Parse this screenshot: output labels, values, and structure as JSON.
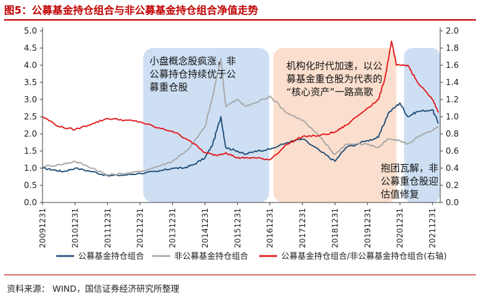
{
  "title": "图5：公募基金持仓组合与非公募基金持仓组合净值走势",
  "source": "资料来源： WIND，国信证券经济研究所整理",
  "chart_data": {
    "type": "line",
    "x": [
      "20091231",
      "20101231",
      "20111231",
      "20121231",
      "20131231",
      "20141231",
      "20151231",
      "20161231",
      "20171231",
      "20181231",
      "20191231",
      "20201231",
      "20211231"
    ],
    "ylim_left": [
      0,
      5
    ],
    "yticks_left": [
      "0.0",
      "0.5",
      "1.0",
      "1.5",
      "2.0",
      "2.5",
      "3.0",
      "3.5",
      "4.0",
      "4.5",
      "5.0"
    ],
    "ylim_right": [
      0,
      2
    ],
    "yticks_right": [
      "0.0",
      "0.2",
      "0.4",
      "0.6",
      "0.8",
      "1.0",
      "1.2",
      "1.4",
      "1.6",
      "1.8",
      "2.0"
    ],
    "series": [
      {
        "name": "公募基金持仓组合",
        "axis": "left",
        "color": "#1f4e79",
        "points": [
          [
            2009.96,
            1.0
          ],
          [
            2010.3,
            0.95
          ],
          [
            2010.6,
            0.9
          ],
          [
            2010.96,
            1.0
          ],
          [
            2011.5,
            0.9
          ],
          [
            2011.96,
            0.78
          ],
          [
            2012.5,
            0.8
          ],
          [
            2012.96,
            0.85
          ],
          [
            2013.5,
            0.9
          ],
          [
            2013.96,
            1.0
          ],
          [
            2014.3,
            1.0
          ],
          [
            2014.6,
            1.1
          ],
          [
            2014.96,
            1.3
          ],
          [
            2015.2,
            1.7
          ],
          [
            2015.45,
            2.5
          ],
          [
            2015.6,
            1.6
          ],
          [
            2015.96,
            1.5
          ],
          [
            2016.2,
            1.4
          ],
          [
            2016.5,
            1.5
          ],
          [
            2016.96,
            1.55
          ],
          [
            2017.5,
            1.75
          ],
          [
            2017.96,
            1.85
          ],
          [
            2018.5,
            1.5
          ],
          [
            2018.96,
            1.2
          ],
          [
            2019.3,
            1.6
          ],
          [
            2019.96,
            1.8
          ],
          [
            2020.3,
            1.9
          ],
          [
            2020.6,
            2.6
          ],
          [
            2020.96,
            2.9
          ],
          [
            2021.2,
            2.5
          ],
          [
            2021.5,
            2.65
          ],
          [
            2021.96,
            2.7
          ],
          [
            2022.15,
            2.3
          ]
        ]
      },
      {
        "name": "非公募基金持仓组合",
        "axis": "left",
        "color": "#a6a6a6",
        "points": [
          [
            2009.96,
            1.05
          ],
          [
            2010.5,
            1.1
          ],
          [
            2010.96,
            1.2
          ],
          [
            2011.5,
            1.0
          ],
          [
            2011.96,
            0.8
          ],
          [
            2012.5,
            0.85
          ],
          [
            2012.96,
            0.9
          ],
          [
            2013.5,
            1.05
          ],
          [
            2013.96,
            1.2
          ],
          [
            2014.5,
            1.6
          ],
          [
            2014.96,
            2.2
          ],
          [
            2015.2,
            3.1
          ],
          [
            2015.45,
            4.2
          ],
          [
            2015.6,
            2.8
          ],
          [
            2015.96,
            3.0
          ],
          [
            2016.2,
            2.8
          ],
          [
            2016.5,
            2.9
          ],
          [
            2016.96,
            3.1
          ],
          [
            2017.5,
            2.6
          ],
          [
            2017.96,
            2.4
          ],
          [
            2018.5,
            1.9
          ],
          [
            2018.96,
            1.4
          ],
          [
            2019.3,
            1.7
          ],
          [
            2019.96,
            1.7
          ],
          [
            2020.3,
            1.6
          ],
          [
            2020.6,
            1.85
          ],
          [
            2020.96,
            1.8
          ],
          [
            2021.2,
            1.7
          ],
          [
            2021.5,
            1.9
          ],
          [
            2021.96,
            2.1
          ],
          [
            2022.15,
            2.2
          ]
        ]
      },
      {
        "name": "公募基金持仓组合/非公募基金持仓组合(右轴)",
        "axis": "right",
        "color": "#e3191c",
        "points": [
          [
            2009.96,
            1.0
          ],
          [
            2010.5,
            0.88
          ],
          [
            2010.96,
            0.85
          ],
          [
            2011.5,
            0.92
          ],
          [
            2011.96,
            0.98
          ],
          [
            2012.5,
            0.96
          ],
          [
            2012.96,
            0.94
          ],
          [
            2013.5,
            0.87
          ],
          [
            2013.96,
            0.83
          ],
          [
            2014.5,
            0.72
          ],
          [
            2014.96,
            0.58
          ],
          [
            2015.3,
            0.55
          ],
          [
            2015.6,
            0.58
          ],
          [
            2015.96,
            0.52
          ],
          [
            2016.2,
            0.52
          ],
          [
            2016.5,
            0.52
          ],
          [
            2016.96,
            0.5
          ],
          [
            2017.5,
            0.68
          ],
          [
            2017.96,
            0.77
          ],
          [
            2018.5,
            0.78
          ],
          [
            2018.96,
            0.82
          ],
          [
            2019.3,
            0.9
          ],
          [
            2019.96,
            1.1
          ],
          [
            2020.3,
            1.2
          ],
          [
            2020.5,
            1.45
          ],
          [
            2020.7,
            1.88
          ],
          [
            2020.85,
            1.6
          ],
          [
            2021.2,
            1.6
          ],
          [
            2021.5,
            1.4
          ],
          [
            2021.96,
            1.2
          ],
          [
            2022.15,
            1.05
          ]
        ]
      }
    ],
    "annotations": [
      {
        "text": [
          "小盘概念股疯涨，非",
          "公募持仓持续优于公",
          "募重仓股"
        ],
        "region": [
          2013.0,
          2017.0
        ],
        "color": "#c5d9f1"
      },
      {
        "text": [
          "机构化时代加速，以公",
          "募基金重仓股为代表的",
          "“核心资产”一路高歌"
        ],
        "region": [
          2017.0,
          2021.0
        ],
        "color": "#fad9c6"
      },
      {
        "text": [
          "抱团瓦解，非",
          "公募重仓股迎",
          "估值修复"
        ],
        "region": [
          2021.0,
          2022.15
        ],
        "color": "#c5d9f1"
      }
    ],
    "legend_position": "bottom",
    "grid": false
  }
}
